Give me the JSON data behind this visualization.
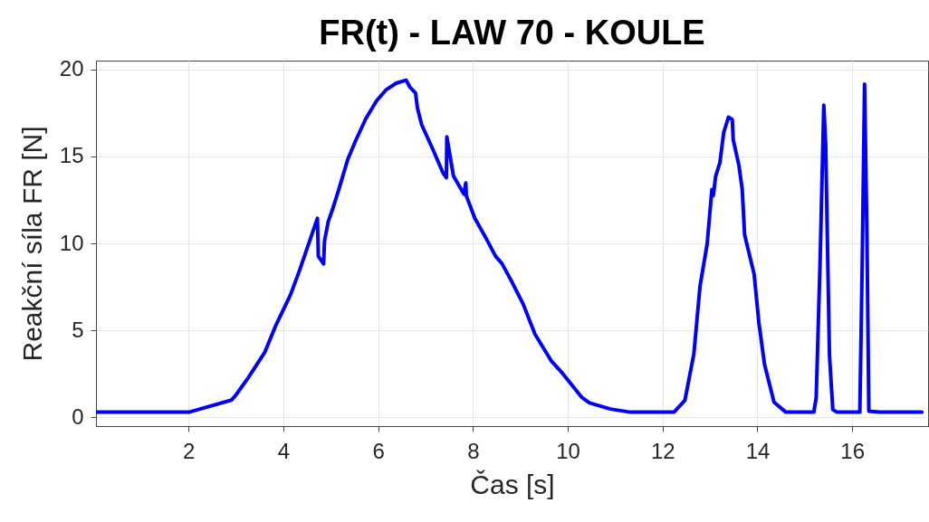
{
  "chart_data": {
    "type": "line",
    "title": "FR(t) - LAW 70 - KOULE",
    "xlabel": "Čas [s]",
    "ylabel": "Reakční síla FR [N]",
    "xlim": [
      0.05,
      17.6
    ],
    "ylim": [
      -0.5,
      20.5
    ],
    "xticks": [
      2,
      4,
      6,
      8,
      10,
      12,
      14,
      16
    ],
    "yticks": [
      0,
      5,
      10,
      15,
      20
    ],
    "grid": true,
    "line_style": "solid",
    "x": [
      0.05,
      2.01,
      2.91,
      3.0,
      3.26,
      3.61,
      3.83,
      4.15,
      4.34,
      4.72,
      4.74,
      4.85,
      4.87,
      4.95,
      5.04,
      5.17,
      5.36,
      5.52,
      5.74,
      5.97,
      6.16,
      6.38,
      6.59,
      6.67,
      6.79,
      6.83,
      6.92,
      7.15,
      7.37,
      7.44,
      7.45,
      7.59,
      7.81,
      7.85,
      7.86,
      8.04,
      8.29,
      8.48,
      8.61,
      8.8,
      9.06,
      9.31,
      9.66,
      9.89,
      10.3,
      10.46,
      10.9,
      11.32,
      12.24,
      12.47,
      12.66,
      12.79,
      12.94,
      13.04,
      13.07,
      13.12,
      13.21,
      13.29,
      13.39,
      13.47,
      13.49,
      13.61,
      13.68,
      13.73,
      13.93,
      14.03,
      14.15,
      14.35,
      14.6,
      15.19,
      15.24,
      15.32,
      15.4,
      15.44,
      15.52,
      15.59,
      15.68,
      16.16,
      16.21,
      16.26,
      16.31,
      16.35,
      16.58,
      17.47
    ],
    "series": [
      {
        "color": "#0000ff",
        "values": [
          0.3,
          0.3,
          1.0,
          1.28,
          2.27,
          3.74,
          5.21,
          7.03,
          8.42,
          11.44,
          9.25,
          8.82,
          10.15,
          11.27,
          11.96,
          13.09,
          14.82,
          15.86,
          17.16,
          18.2,
          18.8,
          19.2,
          19.38,
          18.98,
          18.63,
          17.77,
          16.81,
          15.43,
          14.04,
          13.78,
          16.12,
          13.87,
          12.83,
          13.47,
          12.74,
          11.44,
          10.23,
          9.25,
          8.85,
          7.9,
          6.51,
          4.78,
          3.22,
          2.53,
          1.14,
          0.83,
          0.48,
          0.3,
          0.3,
          0.97,
          3.65,
          7.55,
          9.97,
          13.09,
          12.74,
          13.87,
          14.65,
          16.38,
          17.25,
          17.11,
          15.95,
          14.48,
          13.09,
          10.49,
          8.24,
          5.47,
          3.05,
          0.88,
          0.3,
          0.3,
          1.14,
          8.76,
          17.94,
          15.69,
          3.57,
          0.45,
          0.3,
          0.3,
          8.76,
          19.15,
          10.49,
          0.36,
          0.3,
          0.3
        ]
      }
    ]
  }
}
